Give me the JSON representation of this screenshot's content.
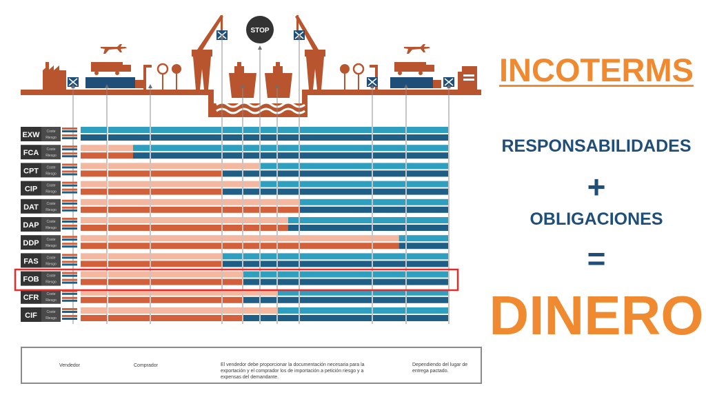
{
  "right_panel": {
    "title": "INCOTERMS",
    "line1": "RESPONSABILIDADES",
    "plus": "+",
    "line2": "OBLIGACIONES",
    "equals": "=",
    "result": "DINERO"
  },
  "diagram": {
    "stop_sign": "STOP",
    "row_sublabels": [
      "Coste",
      "Riesgo"
    ],
    "highlighted_term": "FOB",
    "colors": {
      "seller": "#d2603a",
      "seller_light": "#f4b79f",
      "buyer": "#1f5f86",
      "buyer_light": "#2f9fc0",
      "scene": "#b8552f",
      "highlight": "#e32d2d"
    },
    "terms": [
      {
        "code": "EXW",
        "cost_seller_cols": 0,
        "risk_seller_cols": 0
      },
      {
        "code": "FCA",
        "cost_seller_cols": 1.6,
        "risk_seller_cols": 1.6
      },
      {
        "code": "CPT",
        "cost_seller_cols": 5,
        "risk_seller_cols": 3
      },
      {
        "code": "CIP",
        "cost_seller_cols": 5,
        "risk_seller_cols": 3
      },
      {
        "code": "DAT",
        "cost_seller_cols": 7,
        "risk_seller_cols": 7
      },
      {
        "code": "DAP",
        "cost_seller_cols": 6.5,
        "risk_seller_cols": 6.5
      },
      {
        "code": "DDP",
        "cost_seller_cols": 8.8,
        "risk_seller_cols": 8.8
      },
      {
        "code": "FAS",
        "cost_seller_cols": 3,
        "risk_seller_cols": 3
      },
      {
        "code": "FOB",
        "cost_seller_cols": 4,
        "risk_seller_cols": 4
      },
      {
        "code": "CFR",
        "cost_seller_cols": 6,
        "risk_seller_cols": 4
      },
      {
        "code": "CIF",
        "cost_seller_cols": 6,
        "risk_seller_cols": 4
      }
    ]
  },
  "legend": {
    "seller": "Vendedor",
    "buyer": "Comprador",
    "docs": "El vendedor debe proporcionar la documentación necesaria para la exportación y el comprador los de importación a petición riesgo y a expensas del demandante.",
    "depends": "Dependiendo del lugar de entrega pactado."
  }
}
